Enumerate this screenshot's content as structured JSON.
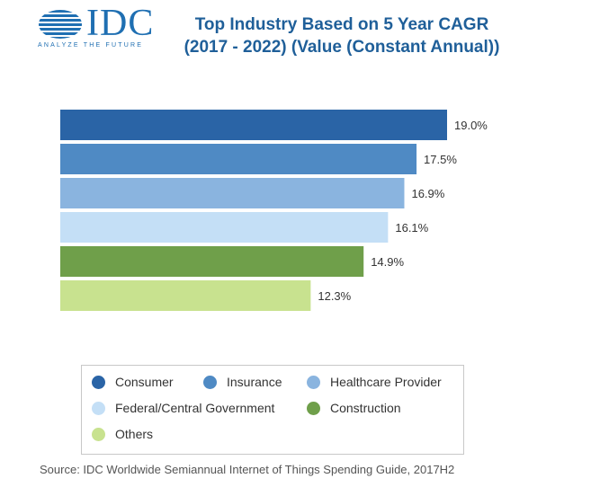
{
  "logo": {
    "name": "IDC",
    "tagline": "ANALYZE THE FUTURE",
    "color": "#1f6fb2"
  },
  "chart_data": {
    "type": "bar",
    "orientation": "horizontal",
    "title_lines": [
      "Top Industry Based on 5 Year CAGR",
      "(2017 - 2022) (Value (Constant Annual))"
    ],
    "categories": [
      "Consumer",
      "Insurance",
      "Healthcare Provider",
      "Federal/Central Government",
      "Construction",
      "Others"
    ],
    "values": [
      19.0,
      17.5,
      16.9,
      16.1,
      14.9,
      12.3
    ],
    "value_labels": [
      "19.0%",
      "17.5%",
      "16.9%",
      "16.1%",
      "14.9%",
      "12.3%"
    ],
    "colors": [
      "#2a64a6",
      "#4f8ac4",
      "#8ab4df",
      "#c4dff6",
      "#6f9f4a",
      "#c8e28f"
    ],
    "xlim": [
      0,
      19.0
    ],
    "grid": false,
    "legend_position": "bottom",
    "source": "Source: IDC Worldwide Semiannual Internet of Things Spending Guide, 2017H2"
  }
}
